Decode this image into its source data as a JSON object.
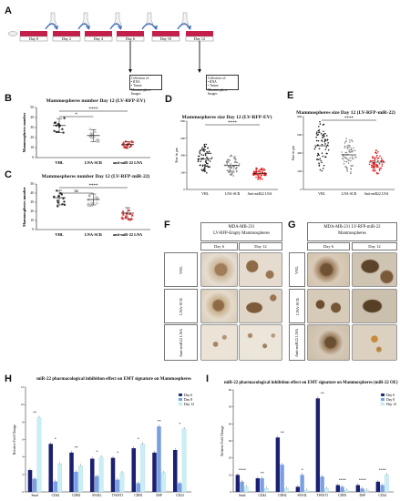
{
  "panels": [
    "A",
    "B",
    "C",
    "D",
    "E",
    "F",
    "G",
    "H",
    "I"
  ],
  "timeline": {
    "days": [
      "Day 0",
      "Day 2",
      "Day 4",
      "Day 6",
      "Day 10",
      "Day 12"
    ],
    "collection_label": "Collection of:",
    "collection_items": [
      "RNA",
      "Tumor Mammosphere Images"
    ]
  },
  "chartB": {
    "title": "Mammospheres number Day 12 (LV-RFP-EV)",
    "ylabel": "Mammospheres number",
    "groups": [
      "VHL",
      "LNA-SCR",
      "anti-miR-22 LNA"
    ],
    "sig": [
      "*",
      "****"
    ]
  },
  "chartC": {
    "title": "Mammospheres number Day 12 (LV-RFP-miR-22)",
    "ylabel": "Mammospheres number",
    "groups": [
      "VHL",
      "LNA-SCR",
      "anti-miR-22 LNA"
    ],
    "sig": [
      "ns",
      "****"
    ]
  },
  "chartD": {
    "title": "Mammospheres size Day 12 (LV-RFP-EV)",
    "ylabel": "Size in µm",
    "groups": [
      "VHL",
      "LNA-SCR",
      "Anti-miR22 LNA"
    ],
    "sig": "****"
  },
  "chartE": {
    "title": "Mammospheres size Day 12 (LV-RFP-miR-22)",
    "ylabel": "Size in µm",
    "groups": [
      "VHL",
      "LNA-SCR",
      "Anti-miR22 LNA"
    ],
    "sig": "****"
  },
  "panelF": {
    "title_line1": "MDA-MB-231",
    "title_line2": "LV-RFP-Empty Mammospheres",
    "cols": [
      "Day 6",
      "Day 12"
    ],
    "rows": [
      "VHL",
      "LNA-SCR",
      "Anti-miR22 LNA"
    ]
  },
  "panelG": {
    "title_line1": "MDA-MB-231 LV-RFP-miR-22",
    "title_line2": "Mammospheres",
    "cols": [
      "Day 6",
      "Day 12"
    ],
    "rows": [
      "VHL",
      "LNA-SCR",
      "Anti-miR22 LNA"
    ]
  },
  "chartH": {
    "title": "miR-22 pharmacological inhibition effect on EMT signature on Mammospheres",
    "ylabel": "Relative Fold Change",
    "genes": [
      "Snail",
      "CD44",
      "CDH2",
      "SNAIL",
      "TWIST1",
      "CDH1",
      "DSP",
      "CD24"
    ],
    "legend": [
      "Day 6",
      "Day 8",
      "Day 12"
    ]
  },
  "chartI": {
    "title": "miR-22 pharmacological inhibition effect on EMT signature on Mammospheres (miR-22 OE)",
    "ylabel": "Relative Fold Change",
    "genes": [
      "Snail",
      "CD44",
      "CDH2",
      "SNAIL",
      "TWIST1",
      "CDH1",
      "DSP",
      "CD24"
    ],
    "legend": [
      "Day 6",
      "Day 8",
      "Day 12"
    ]
  },
  "colors": {
    "red": "#d8203a",
    "dark": "#1b2070",
    "mid": "#7a9fe2",
    "light": "#c9eef5",
    "dotB1": "#333333",
    "dotB2": "#888888",
    "dotB3": "#e03030"
  }
}
